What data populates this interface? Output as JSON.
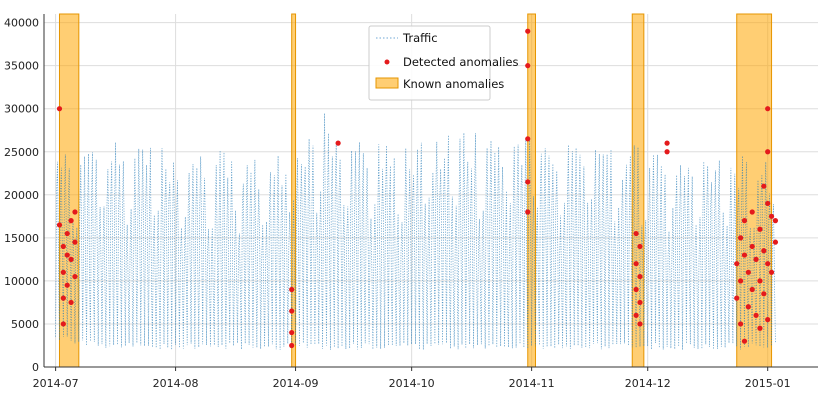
{
  "chart_data": {
    "type": "line",
    "title": "",
    "xlabel": "",
    "ylabel": "",
    "x_range": [
      "2014-06-28",
      "2015-01-14"
    ],
    "ylim": [
      0,
      41000
    ],
    "yticks": [
      0,
      5000,
      10000,
      15000,
      20000,
      25000,
      30000,
      35000,
      40000
    ],
    "xticks": [
      {
        "date": "2014-07-01",
        "label": "2014-07"
      },
      {
        "date": "2014-08-01",
        "label": "2014-08"
      },
      {
        "date": "2014-09-01",
        "label": "2014-09"
      },
      {
        "date": "2014-10-01",
        "label": "2014-10"
      },
      {
        "date": "2014-11-01",
        "label": "2014-11"
      },
      {
        "date": "2014-12-01",
        "label": "2014-12"
      },
      {
        "date": "2015-01-01",
        "label": "2015-01"
      }
    ],
    "grid": true,
    "legend_position": "top-center",
    "series": [
      {
        "name": "Traffic",
        "kind": "line",
        "color": "#1f77b4",
        "x": [
          "2014-07-01",
          "2014-07-08",
          "2014-07-15",
          "2014-07-22",
          "2014-07-29",
          "2014-08-05",
          "2014-08-12",
          "2014-08-19",
          "2014-08-26",
          "2014-09-02",
          "2014-09-09",
          "2014-09-16",
          "2014-09-23",
          "2014-09-30",
          "2014-10-07",
          "2014-10-14",
          "2014-10-21",
          "2014-10-28",
          "2014-11-04",
          "2014-11-11",
          "2014-11-18",
          "2014-11-25",
          "2014-12-02",
          "2014-12-09",
          "2014-12-16",
          "2014-12-23",
          "2014-12-30",
          "2015-01-03"
        ],
        "y_min": [
          3000,
          2500,
          2000,
          2000,
          2000,
          2000,
          2000,
          2000,
          2000,
          2000,
          2000,
          2000,
          2000,
          2000,
          2000,
          2000,
          2000,
          2000,
          2000,
          2000,
          2000,
          2000,
          2000,
          2000,
          2000,
          2000,
          2000,
          2000
        ],
        "y_max": [
          27000,
          25000,
          26500,
          26000,
          25500,
          25000,
          25500,
          24500,
          24000,
          27000,
          30000,
          26500,
          26000,
          26000,
          27000,
          27500,
          27000,
          28000,
          26500,
          26000,
          26500,
          26000,
          25500,
          25000,
          25000,
          24000,
          26000,
          21500
        ]
      },
      {
        "name": "Detected anomalies",
        "kind": "scatter",
        "color": "#e41a1c",
        "points": [
          [
            "2014-07-02",
            30000
          ],
          [
            "2014-07-02",
            16500
          ],
          [
            "2014-07-03",
            14000
          ],
          [
            "2014-07-03",
            11000
          ],
          [
            "2014-07-03",
            8000
          ],
          [
            "2014-07-03",
            5000
          ],
          [
            "2014-07-04",
            15500
          ],
          [
            "2014-07-04",
            13000
          ],
          [
            "2014-07-04",
            9500
          ],
          [
            "2014-07-05",
            17000
          ],
          [
            "2014-07-05",
            12500
          ],
          [
            "2014-07-05",
            7500
          ],
          [
            "2014-07-06",
            18000
          ],
          [
            "2014-07-06",
            14500
          ],
          [
            "2014-07-06",
            10500
          ],
          [
            "2014-08-31",
            9000
          ],
          [
            "2014-08-31",
            6500
          ],
          [
            "2014-08-31",
            4000
          ],
          [
            "2014-08-31",
            2500
          ],
          [
            "2014-09-12",
            26000
          ],
          [
            "2014-10-31",
            39000
          ],
          [
            "2014-10-31",
            35000
          ],
          [
            "2014-10-31",
            26500
          ],
          [
            "2014-10-31",
            21500
          ],
          [
            "2014-10-31",
            18000
          ],
          [
            "2014-11-28",
            15500
          ],
          [
            "2014-11-28",
            12000
          ],
          [
            "2014-11-28",
            9000
          ],
          [
            "2014-11-28",
            6000
          ],
          [
            "2014-11-29",
            14000
          ],
          [
            "2014-11-29",
            10500
          ],
          [
            "2014-11-29",
            7500
          ],
          [
            "2014-11-29",
            5000
          ],
          [
            "2014-12-06",
            26000
          ],
          [
            "2014-12-06",
            25000
          ],
          [
            "2014-12-24",
            12000
          ],
          [
            "2014-12-24",
            8000
          ],
          [
            "2014-12-25",
            15000
          ],
          [
            "2014-12-25",
            10000
          ],
          [
            "2014-12-25",
            5000
          ],
          [
            "2014-12-26",
            17000
          ],
          [
            "2014-12-26",
            13000
          ],
          [
            "2014-12-26",
            3000
          ],
          [
            "2014-12-27",
            11000
          ],
          [
            "2014-12-27",
            7000
          ],
          [
            "2014-12-28",
            18000
          ],
          [
            "2014-12-28",
            14000
          ],
          [
            "2014-12-28",
            9000
          ],
          [
            "2014-12-29",
            12500
          ],
          [
            "2014-12-29",
            6000
          ],
          [
            "2014-12-30",
            16000
          ],
          [
            "2014-12-30",
            10000
          ],
          [
            "2014-12-30",
            4500
          ],
          [
            "2014-12-31",
            21000
          ],
          [
            "2014-12-31",
            13500
          ],
          [
            "2014-12-31",
            8500
          ],
          [
            "2015-01-01",
            30000
          ],
          [
            "2015-01-01",
            25000
          ],
          [
            "2015-01-01",
            19000
          ],
          [
            "2015-01-01",
            12000
          ],
          [
            "2015-01-01",
            5500
          ],
          [
            "2015-01-02",
            17500
          ],
          [
            "2015-01-02",
            11000
          ],
          [
            "2015-01-03",
            17000
          ],
          [
            "2015-01-03",
            14500
          ]
        ]
      },
      {
        "name": "Known anomalies",
        "kind": "span",
        "color": "#ffa500",
        "spans": [
          [
            "2014-07-02",
            "2014-07-07"
          ],
          [
            "2014-08-31",
            "2014-09-01"
          ],
          [
            "2014-10-31",
            "2014-11-02"
          ],
          [
            "2014-11-27",
            "2014-11-30"
          ],
          [
            "2014-12-24",
            "2015-01-02"
          ]
        ]
      }
    ]
  }
}
